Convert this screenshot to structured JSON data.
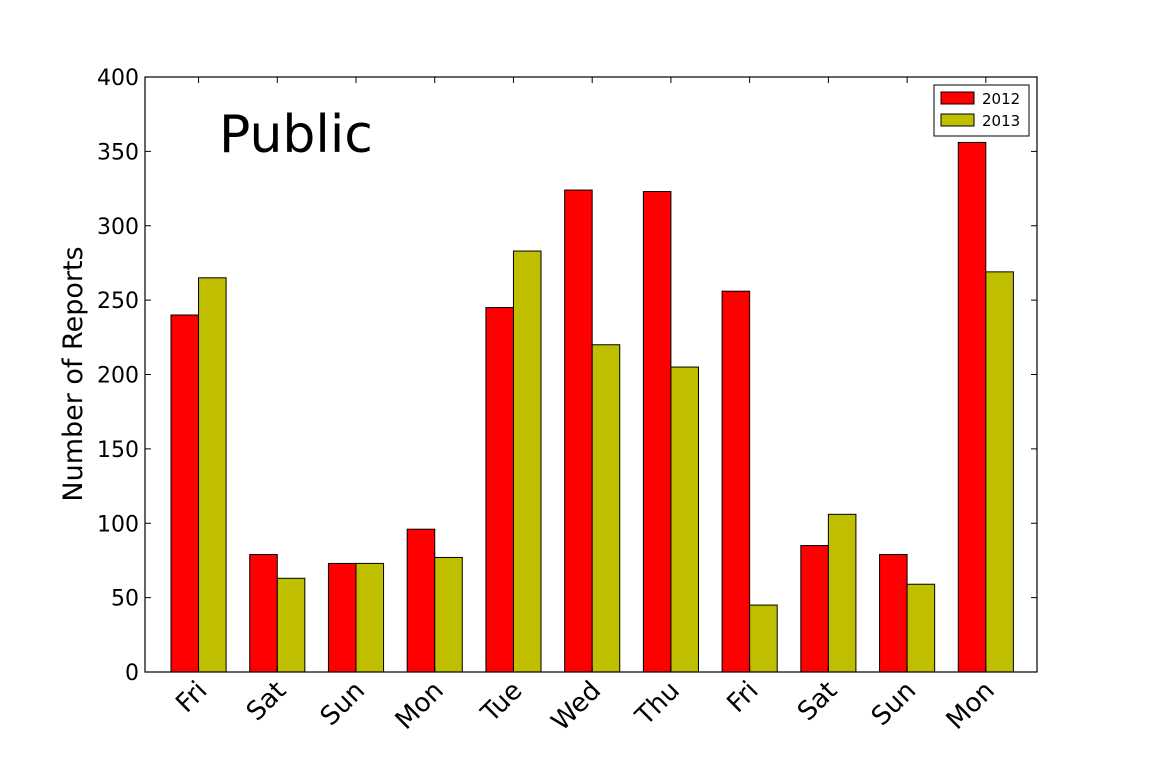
{
  "chart_data": {
    "type": "bar",
    "title": "Public",
    "ylabel": "Number of Reports",
    "xlabel": "",
    "ylim": [
      0,
      400
    ],
    "yticks": [
      0,
      50,
      100,
      150,
      200,
      250,
      300,
      350,
      400
    ],
    "categories": [
      "Fri",
      "Sat",
      "Sun",
      "Mon",
      "Tue",
      "Wed",
      "Thu",
      "Fri",
      "Sat",
      "Sun",
      "Mon"
    ],
    "series": [
      {
        "name": "2012",
        "color": "#ff0000",
        "values": [
          240,
          79,
          73,
          96,
          245,
          324,
          323,
          256,
          85,
          79,
          356
        ]
      },
      {
        "name": "2013",
        "color": "#bfbf00",
        "values": [
          265,
          63,
          73,
          77,
          283,
          220,
          205,
          45,
          106,
          59,
          269
        ]
      }
    ],
    "legend": "top-right",
    "grid": false
  }
}
